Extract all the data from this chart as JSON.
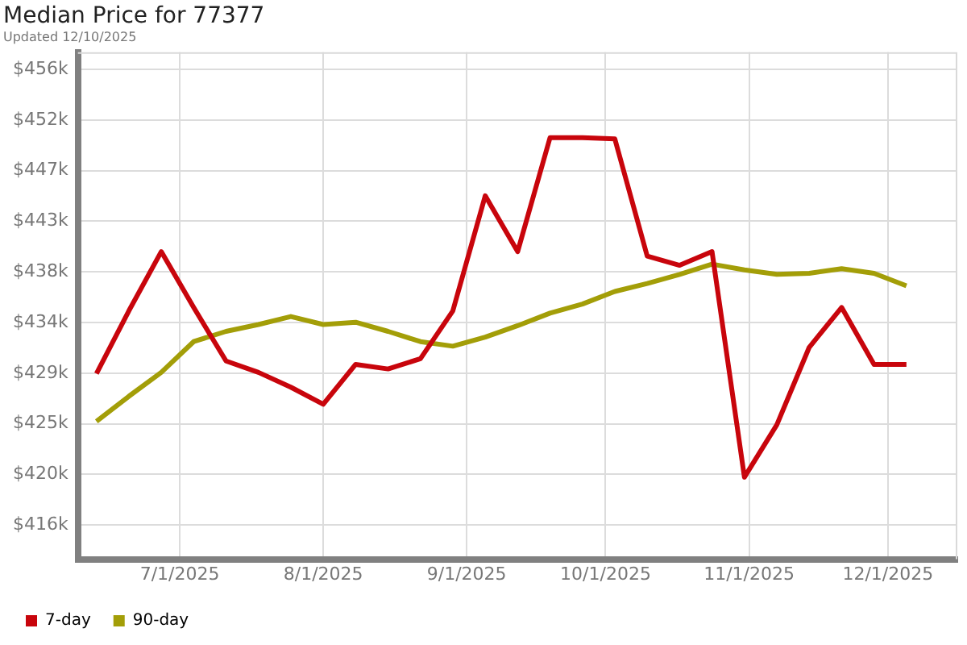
{
  "chart_data": {
    "type": "line",
    "title": "Median Price for 77377",
    "subtitle": "Updated 12/10/2025",
    "x": [
      "2025-06-13",
      "2025-06-20",
      "2025-06-27",
      "2025-07-04",
      "2025-07-11",
      "2025-07-18",
      "2025-07-25",
      "2025-08-01",
      "2025-08-08",
      "2025-08-15",
      "2025-08-22",
      "2025-08-29",
      "2025-09-05",
      "2025-09-12",
      "2025-09-19",
      "2025-09-26",
      "2025-10-03",
      "2025-10-10",
      "2025-10-17",
      "2025-10-24",
      "2025-10-31",
      "2025-11-07",
      "2025-11-14",
      "2025-11-21",
      "2025-11-28",
      "2025-12-05"
    ],
    "series": [
      {
        "name": "7-day",
        "color": "#c8050c",
        "values": [
          429300,
          434800,
          440000,
          435100,
          430400,
          429400,
          428100,
          426600,
          430100,
          429700,
          430600,
          434800,
          444900,
          440000,
          450000,
          450000,
          449900,
          439600,
          438800,
          440000,
          420200,
          424800,
          431600,
          435100,
          430100,
          430100
        ]
      },
      {
        "name": "90-day",
        "color": "#a39e08",
        "values": [
          425100,
          427300,
          429400,
          432100,
          433000,
          433600,
          434300,
          433600,
          433800,
          433000,
          432100,
          431700,
          432500,
          433500,
          434600,
          435400,
          436500,
          437200,
          438000,
          438900,
          438400,
          438000,
          438100,
          438500,
          438100,
          437000
        ]
      }
    ],
    "xlim": [
      "2025-06-09",
      "2025-12-16"
    ],
    "xticks": [
      {
        "value": "2025-07-01",
        "label": "7/1/2025"
      },
      {
        "value": "2025-08-01",
        "label": "8/1/2025"
      },
      {
        "value": "2025-09-01",
        "label": "9/1/2025"
      },
      {
        "value": "2025-10-01",
        "label": "10/1/2025"
      },
      {
        "value": "2025-11-01",
        "label": "11/1/2025"
      },
      {
        "value": "2025-12-01",
        "label": "12/1/2025"
      }
    ],
    "ylim": [
      413000,
      457500
    ],
    "yticks": [
      {
        "value": 416000,
        "label": "$416k"
      },
      {
        "value": 420444,
        "label": "$420k"
      },
      {
        "value": 424889,
        "label": "$425k"
      },
      {
        "value": 429333,
        "label": "$429k"
      },
      {
        "value": 433778,
        "label": "$434k"
      },
      {
        "value": 438222,
        "label": "$438k"
      },
      {
        "value": 442667,
        "label": "$443k"
      },
      {
        "value": 447111,
        "label": "$447k"
      },
      {
        "value": 451556,
        "label": "$452k"
      },
      {
        "value": 456000,
        "label": "$456k"
      }
    ],
    "grid": true,
    "legend": "bottom left",
    "marker": "none",
    "line_style": "solid"
  }
}
